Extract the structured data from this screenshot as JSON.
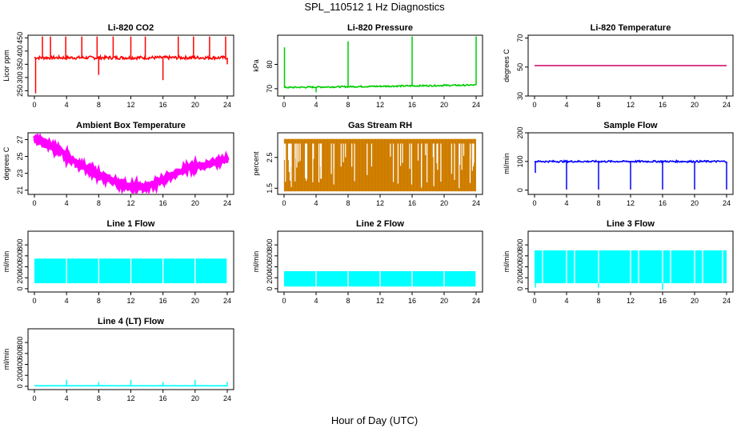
{
  "page": {
    "title": "SPL_110512  1 Hz Diagnostics",
    "x_axis_title": "Hour of Day (UTC)"
  },
  "chart_data": [
    {
      "type": "line",
      "title": "Li-820 CO2",
      "ylabel": "Licor ppm",
      "color": "#ff0000",
      "xlim": [
        0,
        24
      ],
      "ylim": [
        230,
        460
      ],
      "x_ticks": [
        0,
        4,
        8,
        12,
        16,
        20,
        24
      ],
      "y_ticks": [
        250,
        300,
        350,
        400,
        450
      ],
      "series": [
        {
          "baseline": 375,
          "noise": 6,
          "spikes": [
            {
              "x": 0.15,
              "y": 240
            },
            {
              "x": 1.0,
              "y": 455
            },
            {
              "x": 2.0,
              "y": 455
            },
            {
              "x": 3.9,
              "y": 455
            },
            {
              "x": 5.9,
              "y": 455
            },
            {
              "x": 7.8,
              "y": 455
            },
            {
              "x": 8.0,
              "y": 310
            },
            {
              "x": 9.8,
              "y": 455
            },
            {
              "x": 12.0,
              "y": 455
            },
            {
              "x": 13.8,
              "y": 455
            },
            {
              "x": 16.0,
              "y": 290
            },
            {
              "x": 17.9,
              "y": 455
            },
            {
              "x": 19.8,
              "y": 455
            },
            {
              "x": 21.8,
              "y": 455
            },
            {
              "x": 23.8,
              "y": 455
            },
            {
              "x": 24.0,
              "y": 350
            }
          ]
        }
      ]
    },
    {
      "type": "line",
      "title": "Li-820 Pressure",
      "ylabel": "kPa",
      "color": "#00cc00",
      "xlim": [
        0,
        24
      ],
      "ylim": [
        67,
        92
      ],
      "x_ticks": [
        0,
        4,
        8,
        12,
        16,
        20,
        24
      ],
      "y_ticks": [
        70,
        80
      ],
      "series": [
        {
          "start": 70.5,
          "end": 71.5,
          "noise": 0.3,
          "spikes": [
            {
              "x": 0.05,
              "y": 87
            },
            {
              "x": 4.0,
              "y": 68.5
            },
            {
              "x": 8.0,
              "y": 89.5
            },
            {
              "x": 16.0,
              "y": 91.5
            },
            {
              "x": 20.0,
              "y": 72
            },
            {
              "x": 24.0,
              "y": 91.5
            }
          ]
        }
      ]
    },
    {
      "type": "line",
      "title": "Li-820 Temperature",
      "ylabel": "degrees C",
      "color": "#cc0066",
      "xlim": [
        0,
        24
      ],
      "ylim": [
        30,
        72
      ],
      "x_ticks": [
        0,
        4,
        8,
        12,
        16,
        20,
        24
      ],
      "y_ticks": [
        30,
        50,
        70
      ],
      "series": [
        {
          "start": 51,
          "end": 51,
          "noise": 0,
          "spikes": []
        }
      ]
    },
    {
      "type": "line",
      "title": "Ambient Box Temperature",
      "ylabel": "degrees C",
      "color": "#ff00ff",
      "xlim": [
        0,
        24
      ],
      "ylim": [
        20.5,
        27.8
      ],
      "x_ticks": [
        0,
        4,
        8,
        12,
        16,
        20,
        24
      ],
      "y_ticks": [
        21,
        23,
        25,
        27
      ],
      "series": [
        {
          "noise": 0.3,
          "points": [
            [
              0,
              27.0
            ],
            [
              2,
              26.3
            ],
            [
              4,
              25.0
            ],
            [
              6,
              23.8
            ],
            [
              8,
              22.8
            ],
            [
              10,
              22.0
            ],
            [
              12,
              21.5
            ],
            [
              13.5,
              21.3
            ],
            [
              15,
              21.7
            ],
            [
              16,
              22.3
            ],
            [
              18,
              23.3
            ],
            [
              20,
              23.8
            ],
            [
              22,
              24.2
            ],
            [
              24,
              24.6
            ]
          ]
        }
      ]
    },
    {
      "type": "band",
      "title": "Gas Stream RH",
      "ylabel": "percent",
      "color": "#cc8800",
      "xlim": [
        0,
        24
      ],
      "ylim": [
        1.3,
        3.3
      ],
      "x_ticks": [
        0,
        4,
        8,
        12,
        16,
        20,
        24
      ],
      "y_ticks": [
        1.5,
        2.5
      ],
      "series": [
        {
          "low": 1.4,
          "high": 3.1,
          "dip_count": 60,
          "dip_min": 1.5,
          "dip_max": 2.6
        }
      ]
    },
    {
      "type": "line",
      "title": "Sample Flow",
      "ylabel": "ml/min",
      "color": "#0000ff",
      "xlim": [
        0,
        24
      ],
      "ylim": [
        -15,
        200
      ],
      "x_ticks": [
        0,
        4,
        8,
        12,
        16,
        20,
        24
      ],
      "y_ticks": [
        0,
        100,
        200
      ],
      "series": [
        {
          "baseline": 100,
          "noise": 3,
          "spikes": [
            {
              "x": 0.1,
              "y": 60
            },
            {
              "x": 4.0,
              "y": 2
            },
            {
              "x": 8.0,
              "y": 2
            },
            {
              "x": 12.0,
              "y": 2
            },
            {
              "x": 16.0,
              "y": 2
            },
            {
              "x": 20.0,
              "y": 2
            },
            {
              "x": 24.0,
              "y": 2
            }
          ]
        }
      ]
    },
    {
      "type": "band",
      "title": "Line 1 Flow",
      "ylabel": "ml/min",
      "color": "#00ffff",
      "xlim": [
        0,
        24
      ],
      "ylim": [
        -60,
        1050
      ],
      "x_ticks": [
        0,
        4,
        8,
        12,
        16,
        20,
        24
      ],
      "y_ticks": [
        0,
        200,
        400,
        600,
        800
      ],
      "series": [
        {
          "low": 100,
          "high": 550,
          "gaps": [
            4.0,
            8.0,
            12.0,
            16.0,
            20.0,
            24.0
          ]
        }
      ]
    },
    {
      "type": "band",
      "title": "Line 2 Flow",
      "ylabel": "ml/min",
      "color": "#00ffff",
      "xlim": [
        0,
        24
      ],
      "ylim": [
        -60,
        1050
      ],
      "x_ticks": [
        0,
        4,
        8,
        12,
        16,
        20,
        24
      ],
      "y_ticks": [
        0,
        200,
        400,
        600,
        800
      ],
      "series": [
        {
          "low": 40,
          "high": 320,
          "gaps": [
            4.0,
            8.0,
            12.0,
            16.0,
            20.0,
            24.0
          ]
        }
      ]
    },
    {
      "type": "band",
      "title": "Line 3 Flow",
      "ylabel": "ml/min",
      "color": "#00ffff",
      "xlim": [
        0,
        24
      ],
      "ylim": [
        -60,
        1050
      ],
      "x_ticks": [
        0,
        4,
        8,
        12,
        16,
        20,
        24
      ],
      "y_ticks": [
        0,
        200,
        400,
        600,
        800
      ],
      "series": [
        {
          "low": 100,
          "high": 700,
          "gaps": [
            1.0,
            4.0,
            5.0,
            8.0,
            12.0,
            13.0,
            16.0,
            17.0,
            20.0,
            21.0,
            23.5
          ],
          "low_spikes": [
            {
              "x": 0.1,
              "y": 20
            },
            {
              "x": 16.0,
              "y": -20
            },
            {
              "x": 8.0,
              "y": 20
            }
          ]
        }
      ]
    },
    {
      "type": "line",
      "title": "Line 4 (LT) Flow",
      "ylabel": "ml/min",
      "color": "#00ffff",
      "xlim": [
        0,
        24
      ],
      "ylim": [
        -60,
        1050
      ],
      "x_ticks": [
        0,
        4,
        8,
        12,
        16,
        20,
        24
      ],
      "y_ticks": [
        0,
        200,
        400,
        600,
        800
      ],
      "series": [
        {
          "baseline": 10,
          "noise": 2,
          "spikes": [
            {
              "x": 4.0,
              "y": 120
            },
            {
              "x": 8.0,
              "y": 80
            },
            {
              "x": 12.0,
              "y": 120
            },
            {
              "x": 16.0,
              "y": 80
            },
            {
              "x": 20.0,
              "y": 120
            },
            {
              "x": 24.0,
              "y": 80
            }
          ]
        }
      ]
    }
  ]
}
